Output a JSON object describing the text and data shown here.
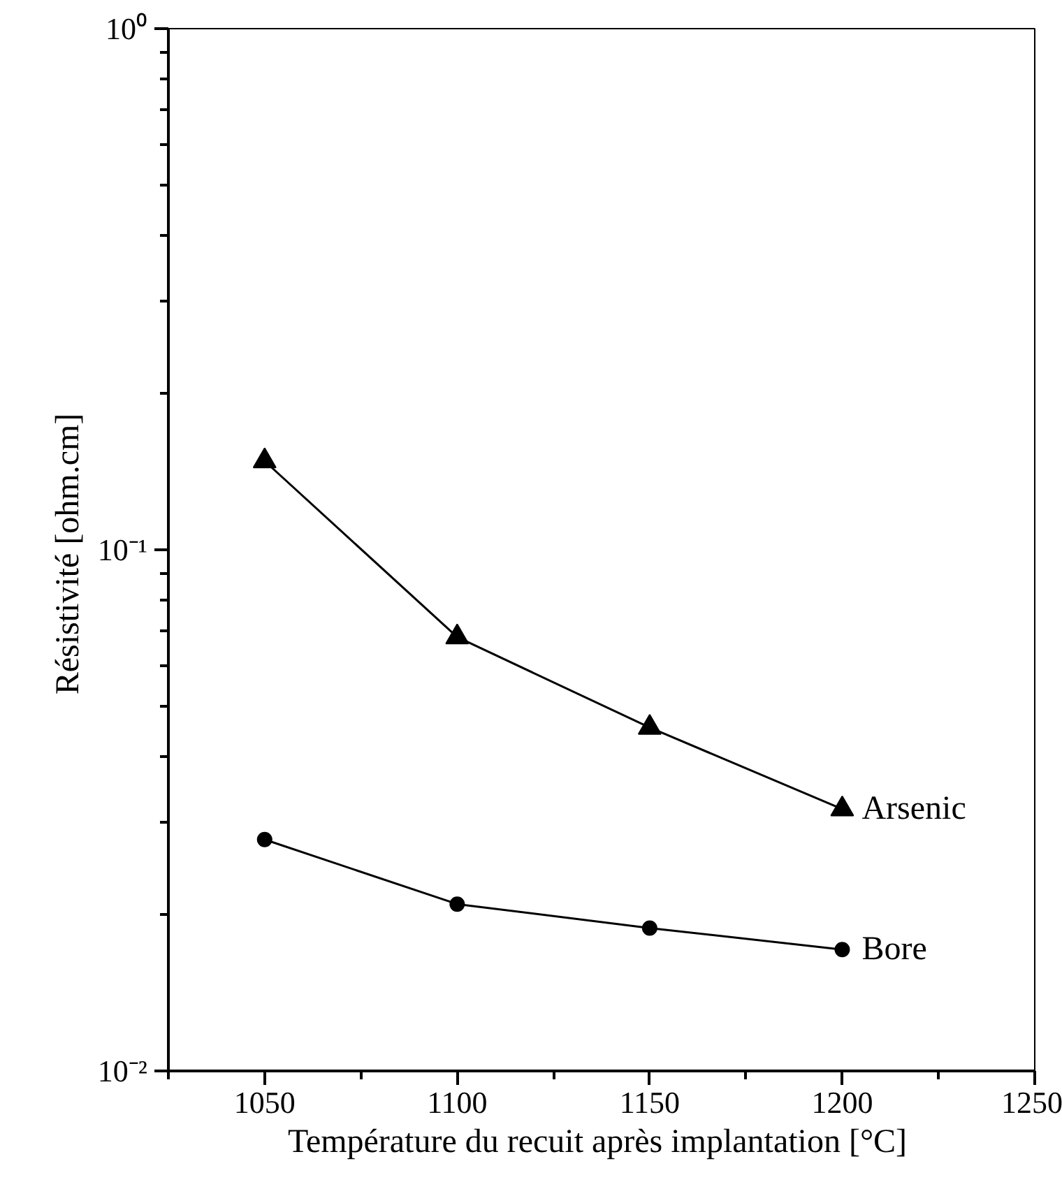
{
  "chart_data": {
    "type": "line",
    "xlabel": "Température du recuit après implantation  [°C]",
    "ylabel": "Résistivité  [ohm.cm]",
    "x": [
      1050,
      1100,
      1150,
      1200
    ],
    "series": [
      {
        "name": "Arsenic",
        "color": "#000000",
        "marker": "triangle",
        "values": [
          0.148,
          0.068,
          0.0456,
          0.0318
        ]
      },
      {
        "name": "Bore",
        "color": "#000000",
        "marker": "circle",
        "values": [
          0.0278,
          0.0209,
          0.0188,
          0.0171
        ]
      }
    ],
    "log": "y",
    "xlim": [
      1025,
      1250
    ],
    "xticks": [
      1050,
      1100,
      1150,
      1200,
      1250
    ],
    "ylim": [
      0.01,
      1
    ],
    "yticks": [
      {
        "value": 0.01,
        "label": "10⁻²"
      },
      {
        "value": 0.1,
        "label": "10⁻¹"
      },
      {
        "value": 1,
        "label": "10⁰"
      }
    ],
    "grid": false,
    "legend": false,
    "line_style": "solid"
  }
}
